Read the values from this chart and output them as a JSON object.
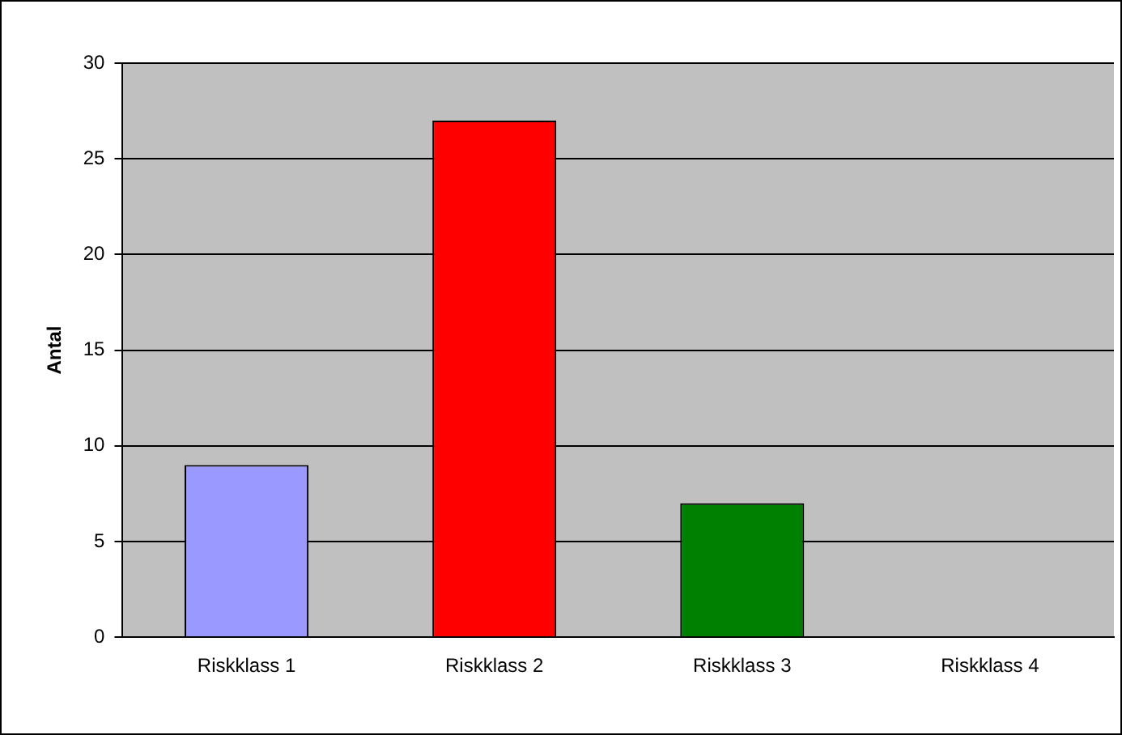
{
  "chart_data": {
    "type": "bar",
    "ylabel": "Antal",
    "categories": [
      "Riskklass 1",
      "Riskklass 2",
      "Riskklass 3",
      "Riskklass 4"
    ],
    "values": [
      9,
      27,
      7,
      0
    ],
    "colors": [
      "#9999ff",
      "#ff0000",
      "#008000",
      "#800080"
    ],
    "ylim": [
      0,
      30
    ],
    "yticks": [
      0,
      5,
      10,
      15,
      20,
      25,
      30
    ],
    "grid": "y",
    "legend": false
  }
}
